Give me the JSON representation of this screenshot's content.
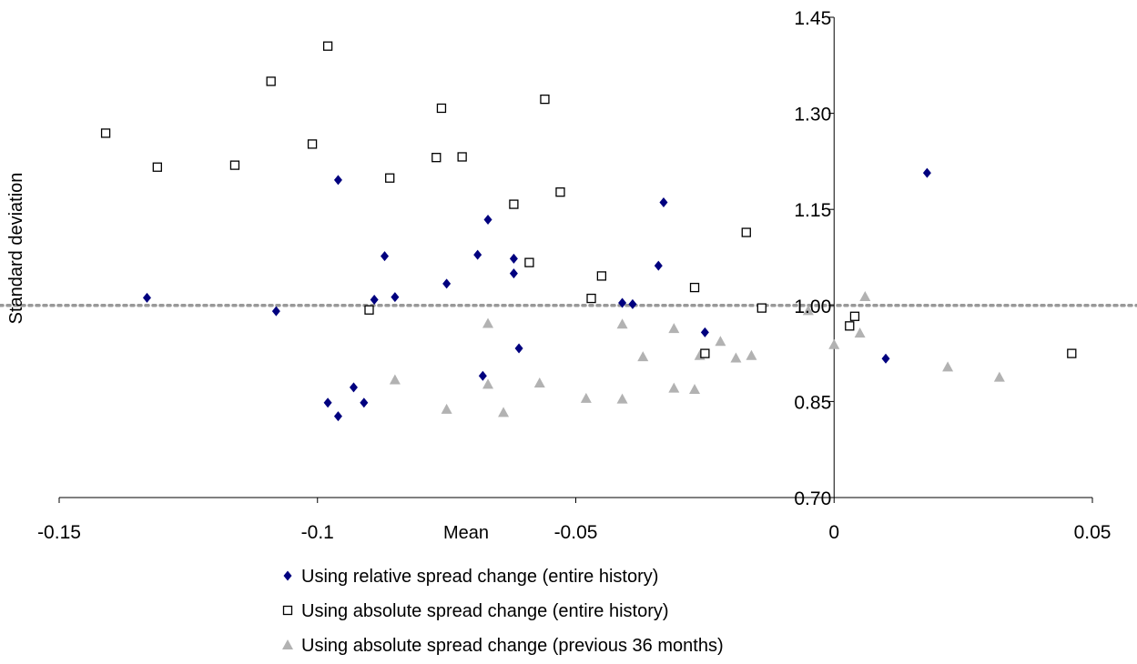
{
  "chart_data": {
    "type": "scatter",
    "title": "",
    "xlabel": "Mean",
    "ylabel": "Standard deviation",
    "xlim": [
      -0.15,
      0.05
    ],
    "ylim": [
      0.7,
      1.45
    ],
    "x_ticks": [
      -0.15,
      -0.1,
      -0.05,
      0,
      0.05
    ],
    "x_tick_labels": [
      "-0.15",
      "-0.1",
      "-0.05",
      "0",
      "0.05"
    ],
    "y_ticks": [
      0.7,
      0.85,
      1.0,
      1.15,
      1.3,
      1.45
    ],
    "y_tick_labels": [
      "0.70",
      "0.85",
      "1.00",
      "1.15",
      "1.30",
      "1.45"
    ],
    "reference_line": {
      "y": 1.0,
      "style": "dotted",
      "color": "#999999"
    },
    "grid": false,
    "legend_position": "bottom",
    "series": [
      {
        "name": "Using relative spread change (entire history)",
        "marker": "diamond",
        "color": "#00007f",
        "points": [
          [
            -0.133,
            1.012
          ],
          [
            -0.108,
            0.991
          ],
          [
            -0.096,
            1.196
          ],
          [
            -0.098,
            0.848
          ],
          [
            -0.096,
            0.827
          ],
          [
            -0.093,
            0.872
          ],
          [
            -0.091,
            0.848
          ],
          [
            -0.089,
            1.009
          ],
          [
            -0.087,
            1.077
          ],
          [
            -0.085,
            1.013
          ],
          [
            -0.075,
            1.034
          ],
          [
            -0.069,
            1.079
          ],
          [
            -0.068,
            0.89
          ],
          [
            -0.067,
            1.134
          ],
          [
            -0.062,
            1.073
          ],
          [
            -0.062,
            1.05
          ],
          [
            -0.061,
            0.933
          ],
          [
            -0.041,
            1.004
          ],
          [
            -0.039,
            1.002
          ],
          [
            -0.034,
            1.062
          ],
          [
            -0.033,
            1.161
          ],
          [
            -0.025,
            0.958
          ],
          [
            0.01,
            0.917
          ],
          [
            0.018,
            1.207
          ]
        ]
      },
      {
        "name": "Using absolute spread change (entire history)",
        "marker": "square-open",
        "color": "#000000",
        "points": [
          [
            -0.141,
            1.269
          ],
          [
            -0.131,
            1.216
          ],
          [
            -0.116,
            1.219
          ],
          [
            -0.109,
            1.35
          ],
          [
            -0.101,
            1.252
          ],
          [
            -0.098,
            1.405
          ],
          [
            -0.09,
            0.993
          ],
          [
            -0.086,
            1.199
          ],
          [
            -0.077,
            1.231
          ],
          [
            -0.076,
            1.308
          ],
          [
            -0.072,
            1.232
          ],
          [
            -0.062,
            1.158
          ],
          [
            -0.059,
            1.067
          ],
          [
            -0.056,
            1.322
          ],
          [
            -0.053,
            1.177
          ],
          [
            -0.047,
            1.011
          ],
          [
            -0.045,
            1.046
          ],
          [
            -0.027,
            1.028
          ],
          [
            -0.025,
            0.925
          ],
          [
            -0.017,
            1.114
          ],
          [
            -0.014,
            0.996
          ],
          [
            0.003,
            0.968
          ],
          [
            0.004,
            0.983
          ],
          [
            0.046,
            0.925
          ]
        ]
      },
      {
        "name": "Using absolute spread change (previous 36 months)",
        "marker": "triangle",
        "color": "#b2b2b2",
        "points": [
          [
            -0.085,
            0.884
          ],
          [
            -0.075,
            0.838
          ],
          [
            -0.067,
            0.972
          ],
          [
            -0.067,
            0.877
          ],
          [
            -0.064,
            0.833
          ],
          [
            -0.057,
            0.879
          ],
          [
            -0.048,
            0.855
          ],
          [
            -0.041,
            0.971
          ],
          [
            -0.041,
            0.854
          ],
          [
            -0.037,
            0.92
          ],
          [
            -0.031,
            0.964
          ],
          [
            -0.031,
            0.871
          ],
          [
            -0.027,
            0.869
          ],
          [
            -0.026,
            0.922
          ],
          [
            -0.022,
            0.944
          ],
          [
            -0.019,
            0.918
          ],
          [
            -0.016,
            0.922
          ],
          [
            -0.005,
            0.992
          ],
          [
            0.0,
            0.939
          ],
          [
            0.005,
            0.957
          ],
          [
            0.006,
            1.014
          ],
          [
            0.022,
            0.904
          ],
          [
            0.032,
            0.888
          ]
        ]
      }
    ]
  }
}
